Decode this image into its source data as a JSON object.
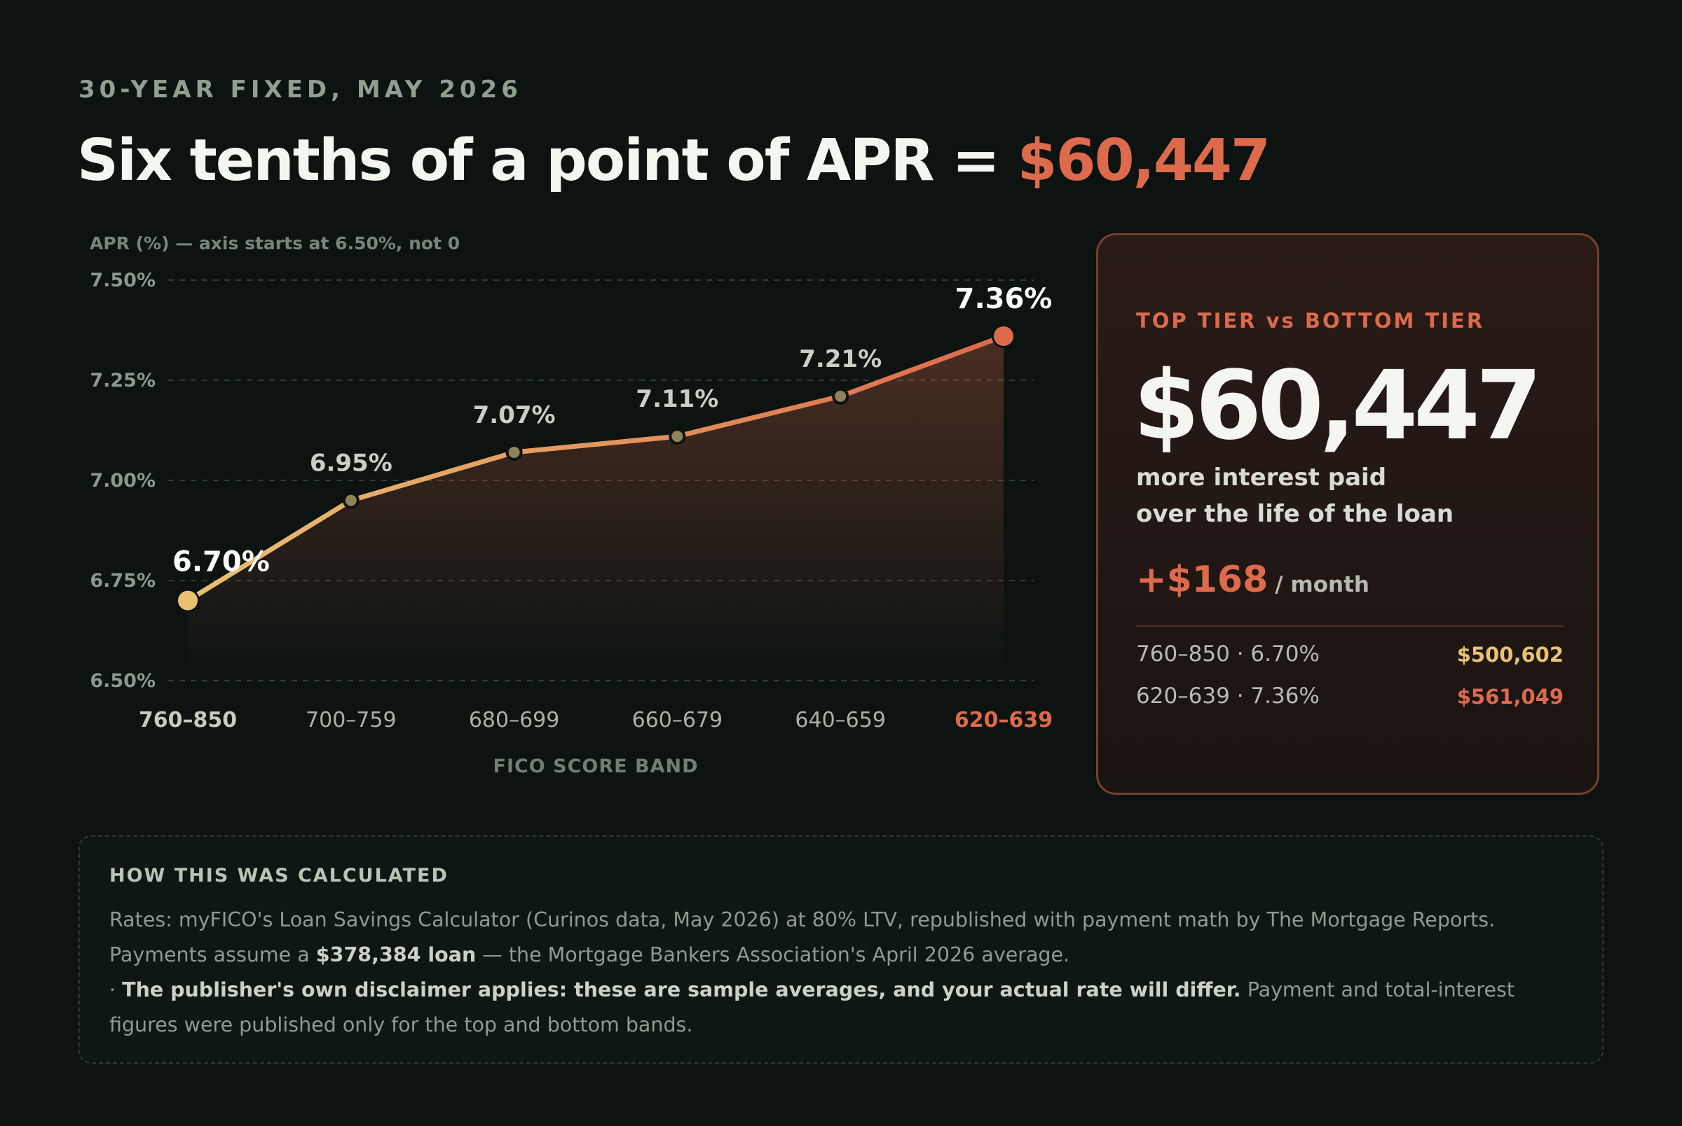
{
  "eyebrow": "30-YEAR FIXED, MAY 2026",
  "headline": {
    "text": "Six tenths of a point of APR = ",
    "accent": "$60,447"
  },
  "chart_data": {
    "type": "line",
    "axis_note": "APR (%) — axis starts at 6.50%, not 0",
    "xlabel": "FICO SCORE BAND",
    "ylabel": "APR (%)",
    "categories": [
      "760–850",
      "700–759",
      "680–699",
      "660–679",
      "640–659",
      "620–639"
    ],
    "values": [
      6.7,
      6.95,
      7.07,
      7.11,
      7.21,
      7.36
    ],
    "value_labels": [
      "6.70%",
      "6.95%",
      "7.07%",
      "7.11%",
      "7.21%",
      "7.36%"
    ],
    "ylim": [
      6.5,
      7.5
    ],
    "yticks": [
      6.5,
      6.75,
      7.0,
      7.25,
      7.5
    ],
    "ytick_labels": [
      "6.50%",
      "6.75%",
      "7.00%",
      "7.25%",
      "7.50%"
    ],
    "grid": true,
    "colors": {
      "start": "#e8c172",
      "end": "#dd6a4b",
      "grid": "#2e3d36",
      "tick": "#8a998c"
    }
  },
  "card": {
    "kicker": "TOP TIER vs BOTTOM TIER",
    "big": "$60,447",
    "sub_line1": "more interest paid",
    "sub_line2": "over the life of the loan",
    "monthly_amount": "+$168",
    "monthly_unit": "/ month",
    "rows": [
      {
        "label": "760–850 · 6.70%",
        "value": "$500,602",
        "color": "#e8c172"
      },
      {
        "label": "620–639 · 7.36%",
        "value": "$561,049",
        "color": "#dd6a4b"
      }
    ]
  },
  "method": {
    "heading": "HOW THIS WAS CALCULATED",
    "p1_a": "Rates: myFICO's Loan Savings Calculator (Curinos data, May 2026) at 80% LTV, republished with payment math by The Mortgage Reports. Payments assume a ",
    "p1_b": "$378,384 loan",
    "p1_c": " — the Mortgage Bankers Association's April 2026 average.",
    "p2_a": "· ",
    "p2_b": "The publisher's own disclaimer applies: these are sample averages, and your actual rate will differ.",
    "p2_c": " Payment and total-interest figures were published only for the top and bottom bands."
  }
}
